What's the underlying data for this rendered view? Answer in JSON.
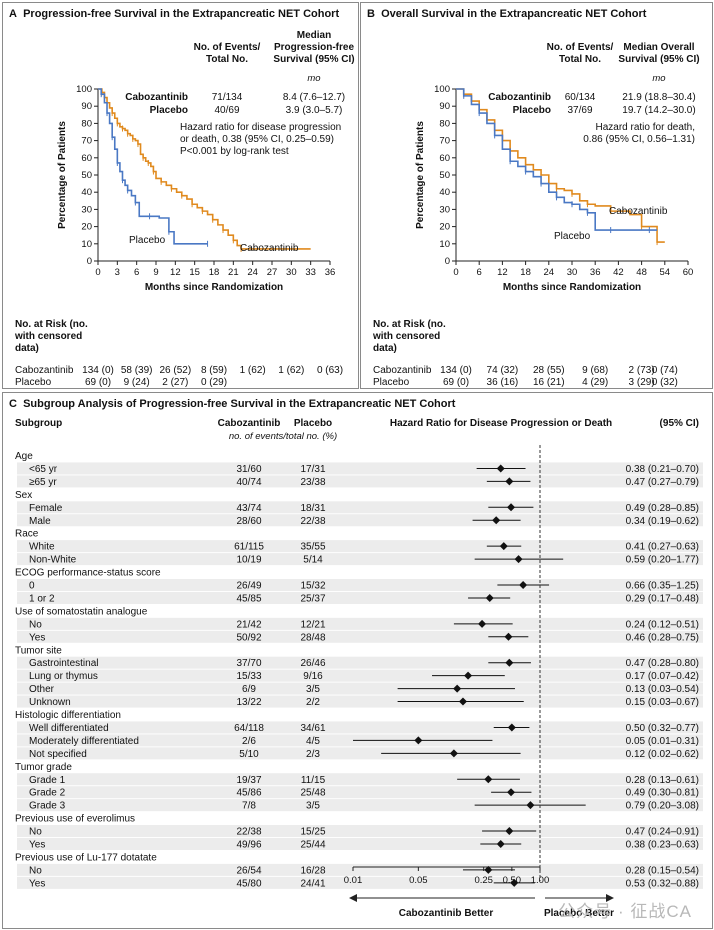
{
  "panel_a": {
    "letter": "A",
    "title": "Progression-free Survival in the Extrapancreatic NET Cohort",
    "hdr_events": [
      "No. of Events/",
      "Total No."
    ],
    "hdr_median": [
      "Median",
      "Progression-free",
      "Survival (95% CI)"
    ],
    "units": "mo",
    "rows": [
      {
        "name": "Cabozantinib",
        "events": "71/134",
        "median": "8.4 (7.6–12.7)"
      },
      {
        "name": "Placebo",
        "events": "40/69",
        "median": "3.9 (3.0–5.7)"
      }
    ],
    "hr_text": [
      "Hazard ratio for disease progression",
      "or death, 0.38 (95% CI, 0.25–0.59)",
      "P<0.001 by log-rank test"
    ],
    "curve_labels": {
      "cabo": "Cabozantinib",
      "placebo": "Placebo"
    },
    "risk_title": [
      "No. at Risk (no.",
      "with censored",
      "data)"
    ],
    "risk": {
      "Cabozantinib": [
        "134 (0)",
        "58 (39)",
        "26 (52)",
        "8 (59)",
        "1 (62)",
        "1 (62)",
        "0 (63)"
      ],
      "Placebo": [
        "69 (0)",
        "9 (24)",
        "2 (27)",
        "0 (29)"
      ]
    }
  },
  "panel_b": {
    "letter": "B",
    "title": "Overall Survival in the Extrapancreatic NET Cohort",
    "hdr_events": [
      "No. of Events/",
      "Total No."
    ],
    "hdr_median": [
      "Median Overall",
      "Survival (95% CI)"
    ],
    "units": "mo",
    "rows": [
      {
        "name": "Cabozantinib",
        "events": "60/134",
        "median": "21.9 (18.8–30.4)"
      },
      {
        "name": "Placebo",
        "events": "37/69",
        "median": "19.7 (14.2–30.0)"
      }
    ],
    "hr_text": [
      "Hazard ratio for death,",
      "0.86 (95% CI, 0.56–1.31)"
    ],
    "curve_labels": {
      "cabo": "Cabozantinib",
      "placebo": "Placebo"
    },
    "risk_title": [
      "No. at Risk (no.",
      "with censored",
      "data)"
    ],
    "risk": {
      "Cabozantinib": [
        "134 (0)",
        "74 (32)",
        "28 (55)",
        "9 (68)",
        "2 (73)",
        "0 (74)"
      ],
      "Placebo": [
        "69 (0)",
        "36 (16)",
        "16 (21)",
        "4 (29)",
        "3 (29)",
        "0 (32)"
      ]
    }
  },
  "panel_c": {
    "letter": "C",
    "title": "Subgroup Analysis of Progression-free Survival in the Extrapancreatic NET Cohort",
    "hdr_subgroup": "Subgroup",
    "hdr_cabo": "Cabozantinib",
    "hdr_placebo": "Placebo",
    "hdr_sub": "no. of events/total no. (%)",
    "hdr_hr": "Hazard Ratio for Disease Progression or Death",
    "hdr_ci": "(95% CI)",
    "axis_ticks": [
      "0.01",
      "0.05",
      "0.25",
      "0.50",
      "1.00"
    ],
    "better_left": "Cabozantinib Better",
    "better_right": "Placebo Better"
  },
  "chart_data": [
    {
      "type": "line",
      "title": "Progression-free Survival in the Extrapancreatic NET Cohort",
      "xlabel": "Months since Randomization",
      "ylabel": "Percentage of Patients",
      "xlim": [
        0,
        36
      ],
      "ylim": [
        0,
        100
      ],
      "xticks": [
        0,
        3,
        6,
        9,
        12,
        15,
        18,
        21,
        24,
        27,
        30,
        33,
        36
      ],
      "yticks": [
        0,
        10,
        20,
        30,
        40,
        50,
        60,
        70,
        80,
        90,
        100
      ],
      "series": [
        {
          "name": "Cabozantinib",
          "color": "#e08a1e",
          "x": [
            0,
            0.6,
            1.0,
            1.4,
            1.8,
            2.2,
            2.6,
            3.0,
            3.4,
            3.8,
            4.2,
            4.6,
            5.0,
            5.4,
            5.8,
            6.2,
            6.6,
            7.0,
            7.4,
            7.8,
            8.2,
            8.6,
            9.0,
            9.8,
            10.6,
            11.4,
            12.2,
            13.0,
            13.8,
            14.6,
            15.4,
            16.2,
            17.0,
            17.8,
            18.6,
            19.4,
            20.2,
            21.0,
            21.6,
            22.2,
            33.0
          ],
          "y": [
            100,
            98,
            95,
            92,
            89,
            86,
            83,
            80,
            78,
            77,
            76,
            74,
            73,
            71,
            70,
            68,
            62,
            60,
            58,
            57,
            55,
            52,
            48,
            46,
            44,
            42,
            40,
            38,
            36,
            33,
            31,
            29,
            27,
            24,
            21,
            18,
            15,
            12,
            9,
            7,
            7
          ]
        },
        {
          "name": "Placebo",
          "color": "#4a78c4",
          "x": [
            0,
            0.5,
            1.0,
            1.4,
            1.8,
            2.2,
            2.6,
            3.0,
            3.4,
            3.8,
            4.2,
            4.6,
            5.2,
            5.8,
            6.4,
            8.0,
            9.5,
            11.0,
            11.8,
            17.0
          ],
          "y": [
            100,
            97,
            92,
            86,
            80,
            72,
            65,
            57,
            52,
            47,
            44,
            41,
            38,
            34,
            26,
            26,
            25,
            17,
            10,
            10
          ]
        }
      ]
    },
    {
      "type": "line",
      "title": "Overall Survival in the Extrapancreatic NET Cohort",
      "xlabel": "Months since Randomization",
      "ylabel": "Percentage of Patients",
      "xlim": [
        0,
        60
      ],
      "ylim": [
        0,
        100
      ],
      "xticks": [
        0,
        6,
        12,
        18,
        24,
        30,
        36,
        42,
        48,
        54,
        60
      ],
      "yticks": [
        0,
        10,
        20,
        30,
        40,
        50,
        60,
        70,
        80,
        90,
        100
      ],
      "series": [
        {
          "name": "Cabozantinib",
          "color": "#e08a1e",
          "x": [
            0,
            2,
            4,
            6,
            8,
            10,
            12,
            14,
            16,
            18,
            20,
            22,
            24,
            26,
            28,
            30,
            32,
            34,
            36,
            40,
            45,
            48,
            50,
            52,
            54
          ],
          "y": [
            100,
            97,
            93,
            88,
            82,
            76,
            70,
            64,
            60,
            56,
            53,
            50,
            45,
            42,
            41,
            39,
            35,
            33,
            32,
            29,
            27,
            20,
            20,
            11,
            11
          ]
        },
        {
          "name": "Placebo",
          "color": "#4a78c4",
          "x": [
            0,
            2,
            4,
            6,
            8,
            10,
            12,
            14,
            16,
            18,
            20,
            22,
            24,
            26,
            28,
            30,
            32,
            34,
            36,
            40,
            46,
            50,
            52
          ],
          "y": [
            100,
            96,
            91,
            86,
            80,
            73,
            65,
            58,
            55,
            52,
            49,
            45,
            40,
            37,
            34,
            33,
            30,
            28,
            18,
            18,
            18,
            18,
            18
          ]
        }
      ]
    },
    {
      "type": "forest",
      "title": "Subgroup Analysis of Progression-free Survival in the Extrapancreatic NET Cohort",
      "xlabel": "Hazard Ratio for Disease Progression or Death (95% CI)",
      "xscale": "log",
      "xlim": [
        0.01,
        1.0
      ],
      "groups": [
        {
          "group": "Age",
          "rows": [
            {
              "label": "<65 yr",
              "cabo": "31/60",
              "placebo": "17/31",
              "hr": 0.38,
              "lo": 0.21,
              "hi": 0.7,
              "ci": "0.38 (0.21–0.70)"
            },
            {
              "label": "≥65 yr",
              "cabo": "40/74",
              "placebo": "23/38",
              "hr": 0.47,
              "lo": 0.27,
              "hi": 0.79,
              "ci": "0.47 (0.27–0.79)"
            }
          ]
        },
        {
          "group": "Sex",
          "rows": [
            {
              "label": "Female",
              "cabo": "43/74",
              "placebo": "18/31",
              "hr": 0.49,
              "lo": 0.28,
              "hi": 0.85,
              "ci": "0.49 (0.28–0.85)"
            },
            {
              "label": "Male",
              "cabo": "28/60",
              "placebo": "22/38",
              "hr": 0.34,
              "lo": 0.19,
              "hi": 0.62,
              "ci": "0.34 (0.19–0.62)"
            }
          ]
        },
        {
          "group": "Race",
          "rows": [
            {
              "label": "White",
              "cabo": "61/115",
              "placebo": "35/55",
              "hr": 0.41,
              "lo": 0.27,
              "hi": 0.63,
              "ci": "0.41 (0.27–0.63)"
            },
            {
              "label": "Non-White",
              "cabo": "10/19",
              "placebo": "5/14",
              "hr": 0.59,
              "lo": 0.2,
              "hi": 1.77,
              "ci": "0.59 (0.20–1.77)"
            }
          ]
        },
        {
          "group": "ECOG performance-status score",
          "rows": [
            {
              "label": "0",
              "cabo": "26/49",
              "placebo": "15/32",
              "hr": 0.66,
              "lo": 0.35,
              "hi": 1.25,
              "ci": "0.66 (0.35–1.25)"
            },
            {
              "label": "1 or 2",
              "cabo": "45/85",
              "placebo": "25/37",
              "hr": 0.29,
              "lo": 0.17,
              "hi": 0.48,
              "ci": "0.29 (0.17–0.48)"
            }
          ]
        },
        {
          "group": "Use of somatostatin analogue",
          "rows": [
            {
              "label": "No",
              "cabo": "21/42",
              "placebo": "12/21",
              "hr": 0.24,
              "lo": 0.12,
              "hi": 0.51,
              "ci": "0.24 (0.12–0.51)"
            },
            {
              "label": "Yes",
              "cabo": "50/92",
              "placebo": "28/48",
              "hr": 0.46,
              "lo": 0.28,
              "hi": 0.75,
              "ci": "0.46 (0.28–0.75)"
            }
          ]
        },
        {
          "group": "Tumor site",
          "rows": [
            {
              "label": "Gastrointestinal",
              "cabo": "37/70",
              "placebo": "26/46",
              "hr": 0.47,
              "lo": 0.28,
              "hi": 0.8,
              "ci": "0.47 (0.28–0.80)"
            },
            {
              "label": "Lung or thymus",
              "cabo": "15/33",
              "placebo": "9/16",
              "hr": 0.17,
              "lo": 0.07,
              "hi": 0.42,
              "ci": "0.17 (0.07–0.42)"
            },
            {
              "label": "Other",
              "cabo": "6/9",
              "placebo": "3/5",
              "hr": 0.13,
              "lo": 0.03,
              "hi": 0.54,
              "ci": "0.13 (0.03–0.54)"
            },
            {
              "label": "Unknown",
              "cabo": "13/22",
              "placebo": "2/2",
              "hr": 0.15,
              "lo": 0.03,
              "hi": 0.67,
              "ci": "0.15 (0.03–0.67)"
            }
          ]
        },
        {
          "group": "Histologic differentiation",
          "rows": [
            {
              "label": "Well differentiated",
              "cabo": "64/118",
              "placebo": "34/61",
              "hr": 0.5,
              "lo": 0.32,
              "hi": 0.77,
              "ci": "0.50 (0.32–0.77)"
            },
            {
              "label": "Moderately differentiated",
              "cabo": "2/6",
              "placebo": "4/5",
              "hr": 0.05,
              "lo": 0.01,
              "hi": 0.31,
              "ci": "0.05 (0.01–0.31)"
            },
            {
              "label": "Not specified",
              "cabo": "5/10",
              "placebo": "2/3",
              "hr": 0.12,
              "lo": 0.02,
              "hi": 0.62,
              "ci": "0.12 (0.02–0.62)"
            }
          ]
        },
        {
          "group": "Tumor grade",
          "rows": [
            {
              "label": "Grade 1",
              "cabo": "19/37",
              "placebo": "11/15",
              "hr": 0.28,
              "lo": 0.13,
              "hi": 0.61,
              "ci": "0.28 (0.13–0.61)"
            },
            {
              "label": "Grade 2",
              "cabo": "45/86",
              "placebo": "25/48",
              "hr": 0.49,
              "lo": 0.3,
              "hi": 0.81,
              "ci": "0.49 (0.30–0.81)"
            },
            {
              "label": "Grade 3",
              "cabo": "7/8",
              "placebo": "3/5",
              "hr": 0.79,
              "lo": 0.2,
              "hi": 3.08,
              "ci": "0.79 (0.20–3.08)"
            }
          ]
        },
        {
          "group": "Previous use of everolimus",
          "rows": [
            {
              "label": "No",
              "cabo": "22/38",
              "placebo": "15/25",
              "hr": 0.47,
              "lo": 0.24,
              "hi": 0.91,
              "ci": "0.47 (0.24–0.91)"
            },
            {
              "label": "Yes",
              "cabo": "49/96",
              "placebo": "25/44",
              "hr": 0.38,
              "lo": 0.23,
              "hi": 0.63,
              "ci": "0.38 (0.23–0.63)"
            }
          ]
        },
        {
          "group": "Previous use of Lu-177 dotatate",
          "rows": [
            {
              "label": "No",
              "cabo": "26/54",
              "placebo": "16/28",
              "hr": 0.28,
              "lo": 0.15,
              "hi": 0.54,
              "ci": "0.28 (0.15–0.54)"
            },
            {
              "label": "Yes",
              "cabo": "45/80",
              "placebo": "24/41",
              "hr": 0.53,
              "lo": 0.32,
              "hi": 0.88,
              "ci": "0.53 (0.32–0.88)"
            }
          ]
        }
      ]
    }
  ],
  "watermark": "公众号 · 征战CA",
  "colors": {
    "cabo": "#e08a1e",
    "placebo": "#4a78c4",
    "panel_border": "#8a8a8a",
    "stripe": "#e6e6e6"
  }
}
